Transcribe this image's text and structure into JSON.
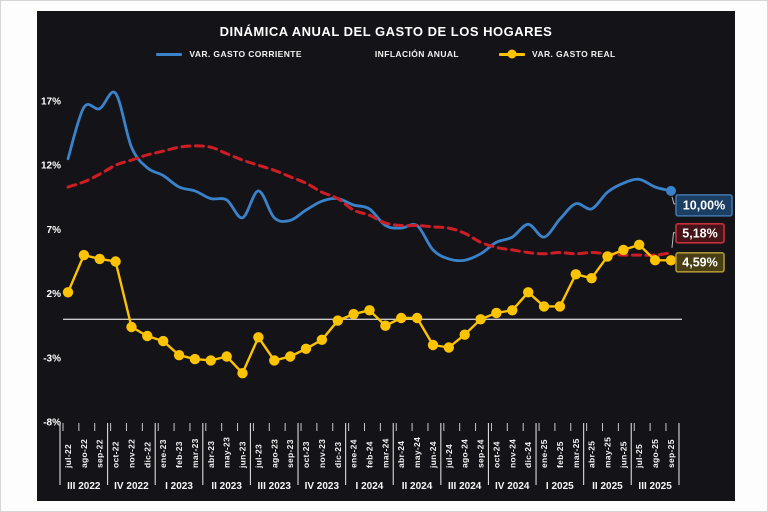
{
  "title": "DINÁMICA ANUAL DEL GASTO DE LOS HOGARES",
  "legend": [
    {
      "label": "VAR. GASTO CORRIENTE",
      "color": "#3a82c9",
      "style": "solid"
    },
    {
      "label": "INFLACIÓN ANUAL",
      "color": "#cf1d26",
      "style": "dashed"
    },
    {
      "label": "VAR. GASTO REAL",
      "color": "#fcc303",
      "style": "solid-marker"
    }
  ],
  "chart_data": {
    "type": "line",
    "title": "DINÁMICA ANUAL DEL GASTO DE LOS HOGARES",
    "x": [
      "jul-22",
      "ago-22",
      "sep-22",
      "oct-22",
      "nov-22",
      "dic-22",
      "ene-23",
      "feb-23",
      "mar-23",
      "abr-23",
      "may-23",
      "jun-23",
      "jul-23",
      "ago-23",
      "sep-23",
      "oct-23",
      "nov-23",
      "dic-23",
      "ene-24",
      "feb-24",
      "mar-24",
      "abr-24",
      "may-24",
      "jun-24",
      "jul-24",
      "ago-24",
      "sep-24",
      "oct-24",
      "nov-24",
      "dic-24",
      "ene-25",
      "feb-25",
      "mar-25",
      "abr-25",
      "may-25",
      "jun-25",
      "jul-25",
      "ago-25",
      "sep-25"
    ],
    "quarter_labels": [
      "III 2022",
      "IV 2022",
      "I 2023",
      "II 2023",
      "III 2023",
      "IV 2023",
      "I 2024",
      "II 2024",
      "III 2024",
      "IV 2024",
      "I 2025",
      "II 2025",
      "III 2025"
    ],
    "series": [
      {
        "name": "VAR. GASTO CORRIENTE",
        "color": "#3a82c9",
        "line": "solid",
        "markers": "last",
        "values": [
          12.5,
          16.5,
          16.4,
          17.6,
          13.4,
          11.8,
          11.2,
          10.3,
          10.0,
          9.4,
          9.3,
          7.9,
          10.0,
          7.9,
          7.7,
          8.5,
          9.2,
          9.4,
          8.9,
          8.6,
          7.3,
          7.1,
          7.3,
          5.4,
          4.7,
          4.6,
          5.1,
          6.0,
          6.4,
          7.4,
          6.4,
          7.8,
          9.0,
          8.6,
          9.9,
          10.6,
          10.9,
          10.3,
          10.0
        ],
        "end_label": "10,00%",
        "badge_fill": "#1c3e63",
        "badge_border": "#4076ad"
      },
      {
        "name": "INFLACIÓN ANUAL",
        "color": "#cf1d26",
        "line": "dashed",
        "markers": "none",
        "values": [
          10.3,
          10.7,
          11.3,
          12.0,
          12.4,
          12.8,
          13.1,
          13.4,
          13.5,
          13.4,
          12.9,
          12.4,
          12.0,
          11.6,
          11.1,
          10.6,
          9.9,
          9.4,
          8.5,
          8.1,
          7.5,
          7.3,
          7.3,
          7.2,
          7.1,
          6.7,
          6.0,
          5.6,
          5.4,
          5.2,
          5.1,
          5.2,
          5.1,
          5.2,
          5.1,
          5.0,
          5.0,
          5.0,
          5.18
        ],
        "end_label": "5,18%",
        "badge_fill": "#451318",
        "badge_border": "#c5303a"
      },
      {
        "name": "VAR. GASTO REAL",
        "color": "#fcc303",
        "line": "solid",
        "markers": "all",
        "values": [
          2.1,
          5.0,
          4.7,
          4.5,
          -0.6,
          -1.3,
          -1.7,
          -2.8,
          -3.1,
          -3.2,
          -2.9,
          -4.2,
          -1.4,
          -3.2,
          -2.9,
          -2.3,
          -1.6,
          -0.1,
          0.4,
          0.7,
          -0.5,
          0.1,
          0.1,
          -2.0,
          -2.2,
          -1.2,
          0.0,
          0.5,
          0.7,
          2.1,
          1.0,
          1.0,
          3.5,
          3.2,
          4.9,
          5.4,
          5.8,
          4.6,
          4.59
        ],
        "end_label": "4,59%",
        "badge_fill": "#473e14",
        "badge_border": "#ab9434"
      }
    ],
    "ytick_labels": [
      "17%",
      "12%",
      "7%",
      "2%",
      "-3%",
      "-8%"
    ],
    "yticks": [
      17,
      12,
      7,
      2,
      -3,
      -8
    ],
    "ylim": [
      -8,
      17
    ],
    "zero_line": 0,
    "grid": "zero-line-only",
    "legend_position": "top"
  },
  "colors": {
    "panel_background": "#131318",
    "text": "#ffffff",
    "axis_line": "#c9c9c9",
    "separator": "#dcdcdc"
  }
}
